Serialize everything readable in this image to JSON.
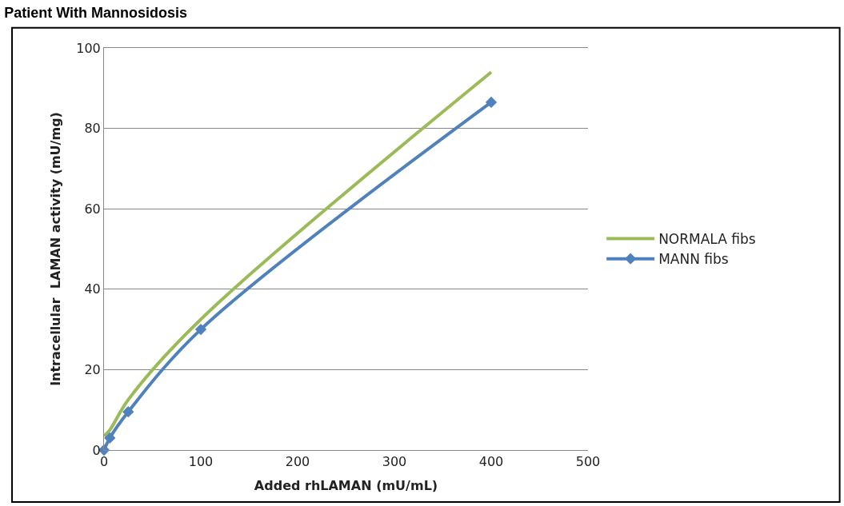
{
  "chart_data": {
    "type": "line",
    "title": "Patient With Mannosidosis",
    "xlabel": "Added rhLAMAN (mU/mL)",
    "ylabel": "Intracellular  LAMAN activity (mU/mg)",
    "x": [
      0,
      6,
      25,
      100,
      400
    ],
    "series": [
      {
        "name": "NORMALA fibs",
        "color": "#9bbb59",
        "marker": "none",
        "values": [
          3.5,
          5,
          12.5,
          32.5,
          94
        ]
      },
      {
        "name": "MANN fibs",
        "color": "#4f81bd",
        "marker": "diamond",
        "values": [
          0,
          3,
          9.5,
          30,
          86.5
        ]
      }
    ],
    "xlim": [
      0,
      500
    ],
    "xticks": [
      0,
      100,
      200,
      300,
      400,
      500
    ],
    "ylim": [
      0,
      100
    ],
    "yticks": [
      0,
      20,
      40,
      60,
      80,
      100
    ],
    "grid": "y",
    "legend": "right",
    "line_style": "solid"
  }
}
